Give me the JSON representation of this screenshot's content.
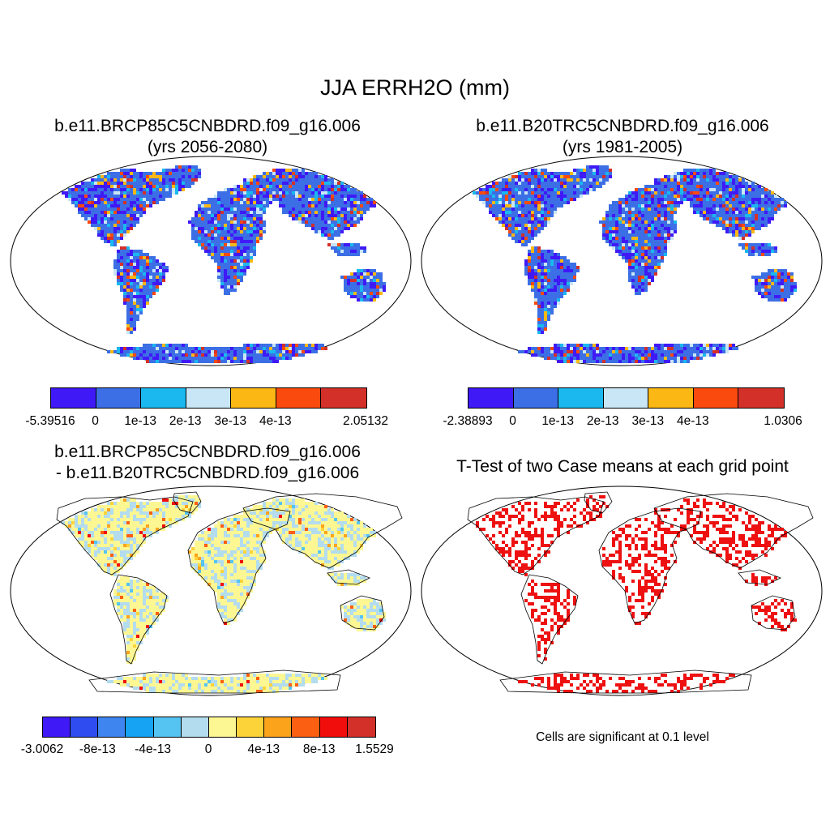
{
  "title": "JJA ERRH2O (mm)",
  "panels": [
    {
      "title_line1": "b.e11.BRCP85C5CNBDRD.f09_g16.006",
      "title_line2": "(yrs 2056-2080)",
      "colorbar": {
        "colors": [
          "#3f1af7",
          "#3c6fe5",
          "#1ab8ef",
          "#c8e6f5",
          "#fbb814",
          "#fb4a0e",
          "#d4302a"
        ],
        "labels": [
          "-5.39516",
          "0",
          "1e-13",
          "2e-13",
          "3e-13",
          "4e-13",
          "2.05132"
        ]
      }
    },
    {
      "title_line1": "b.e11.B20TRC5CNBDRD.f09_g16.006",
      "title_line2": "(yrs 1981-2005)",
      "colorbar": {
        "colors": [
          "#3f1af7",
          "#3c6fe5",
          "#1ab8ef",
          "#c8e6f5",
          "#fbb814",
          "#fb4a0e",
          "#d4302a"
        ],
        "labels": [
          "-2.38893",
          "0",
          "1e-13",
          "2e-13",
          "3e-13",
          "4e-13",
          "1.0306"
        ]
      }
    },
    {
      "title_line1": "b.e11.BRCP85C5CNBDRD.f09_g16.006",
      "title_line2": "- b.e11.B20TRC5CNBDRD.f09_g16.006",
      "colorbar": {
        "colors": [
          "#3f1af7",
          "#2f4cf0",
          "#3f85ef",
          "#16a3f3",
          "#55c4f2",
          "#b3dcef",
          "#fdf793",
          "#fdd33a",
          "#fca31c",
          "#fb5f12",
          "#f20d0d",
          "#d4302a"
        ],
        "labels": [
          "-3.0062",
          "-8e-13",
          "-4e-13",
          "0",
          "4e-13",
          "8e-13",
          "1.5529"
        ]
      }
    },
    {
      "title_line1": "T-Test of two Case means at each grid point",
      "title_line2": "",
      "footnote": "Cells are significant at 0.1 level",
      "point_color": "#ee1111"
    }
  ]
}
